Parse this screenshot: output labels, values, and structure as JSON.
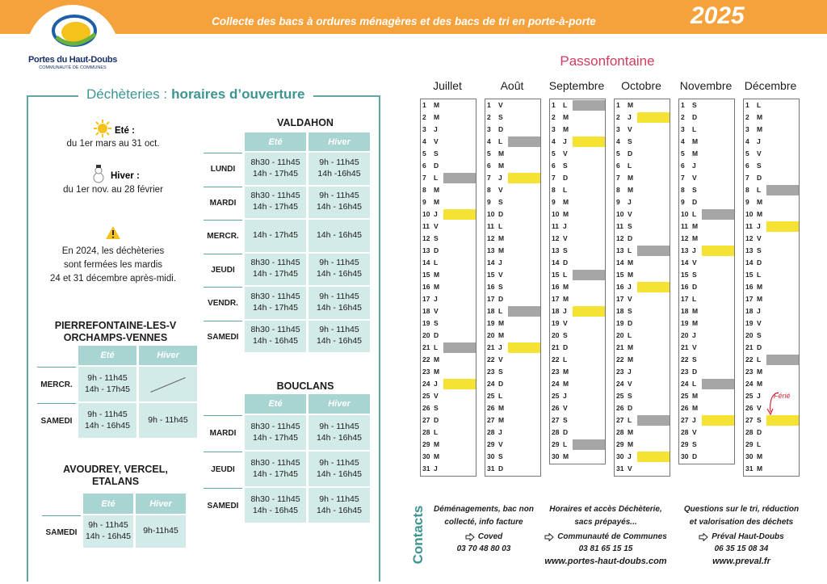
{
  "header": {
    "banner": "Collecte des bacs à ordures ménagères et des bacs de tri en porte-à-porte",
    "year": "2025",
    "logo_name": "Portes du Haut-Doubs",
    "logo_sub": "COMMUNAUTÉ DE COMMUNES"
  },
  "panel": {
    "title_a": "Déchèteries :",
    "title_b": "horaires d’ouverture",
    "summer_label": "Eté :",
    "summer_dates": "du 1er mars au 31 oct.",
    "winter_label": "Hiver :",
    "winter_dates": "du 1er nov. au 28 février",
    "notice": [
      "En 2024, les déchèteries",
      "sont fermées les mardis",
      "24 et 31 décembre après-midi."
    ],
    "tables": [
      {
        "title": [
          "VALDAHON"
        ],
        "columns": [
          "Eté",
          "Hiver"
        ],
        "rows": [
          {
            "day": "LUNDI",
            "cells": [
              [
                "8h30 - 11h45",
                "14h - 17h45"
              ],
              [
                "9h - 11h45",
                "14h -16h45"
              ]
            ]
          },
          {
            "day": "MARDI",
            "cells": [
              [
                "8h30 - 11h45",
                "14h - 17h45"
              ],
              [
                "9h - 11h45",
                "14h - 16h45"
              ]
            ]
          },
          {
            "day": "MERCR.",
            "cells": [
              [
                "14h - 17h45"
              ],
              [
                "14h - 16h45"
              ]
            ]
          },
          {
            "day": "JEUDI",
            "cells": [
              [
                "8h30 - 11h45",
                "14h - 17h45"
              ],
              [
                "9h - 11h45",
                "14h - 16h45"
              ]
            ]
          },
          {
            "day": "VENDR.",
            "cells": [
              [
                "8h30 - 11h45",
                "14h - 17h45"
              ],
              [
                "9h - 11h45",
                "14h - 16h45"
              ]
            ]
          },
          {
            "day": "SAMEDI",
            "cells": [
              [
                "8h30 - 11h45",
                "14h - 16h45"
              ],
              [
                "9h - 11h45",
                "14h - 16h45"
              ]
            ]
          }
        ]
      },
      {
        "title": [
          "PIERREFONTAINE-LES-V",
          "ORCHAMPS-VENNES"
        ],
        "columns": [
          "Eté",
          "Hiver"
        ],
        "rows": [
          {
            "day": "MERCR.",
            "cells": [
              [
                "9h - 11h45",
                "14h - 17h45"
              ],
              []
            ]
          },
          {
            "day": "SAMEDI",
            "cells": [
              [
                "9h - 11h45",
                "14h - 16h45"
              ],
              [
                "9h - 11h45"
              ]
            ]
          }
        ]
      },
      {
        "title": [
          "BOUCLANS"
        ],
        "columns": [
          "Eté",
          "Hiver"
        ],
        "rows": [
          {
            "day": "MARDI",
            "cells": [
              [
                "8h30 - 11h45",
                "14h - 17h45"
              ],
              [
                "9h - 11h45",
                "14h - 16h45"
              ]
            ]
          },
          {
            "day": "JEUDI",
            "cells": [
              [
                "8h30 - 11h45",
                "14h - 17h45"
              ],
              [
                "9h - 11h45",
                "14h - 16h45"
              ]
            ]
          },
          {
            "day": "SAMEDI",
            "cells": [
              [
                "8h30 - 11h45",
                "14h - 16h45"
              ],
              [
                "9h - 11h45",
                "14h - 16h45"
              ]
            ]
          }
        ]
      },
      {
        "title": [
          "AVOUDREY, VERCEL,",
          "ETALANS"
        ],
        "columns": [
          "Eté",
          "Hiver"
        ],
        "rows": [
          {
            "day": "SAMEDI",
            "cells": [
              [
                "9h - 11h45",
                "14h - 16h45"
              ],
              [
                "9h-11h45"
              ]
            ]
          }
        ]
      }
    ]
  },
  "calendar": {
    "title": "Passonfontaine",
    "note": "Férié",
    "months": [
      {
        "name": "Juillet",
        "gray": [
          7,
          21
        ],
        "yellow": [
          10,
          24
        ],
        "days": [
          [
            1,
            "M"
          ],
          [
            2,
            "M"
          ],
          [
            3,
            "J"
          ],
          [
            4,
            "V"
          ],
          [
            5,
            "S"
          ],
          [
            6,
            "D"
          ],
          [
            7,
            "L"
          ],
          [
            8,
            "M"
          ],
          [
            9,
            "M"
          ],
          [
            10,
            "J"
          ],
          [
            11,
            "V"
          ],
          [
            12,
            "S"
          ],
          [
            13,
            "D"
          ],
          [
            14,
            "L"
          ],
          [
            15,
            "M"
          ],
          [
            16,
            "M"
          ],
          [
            17,
            "J"
          ],
          [
            18,
            "V"
          ],
          [
            19,
            "S"
          ],
          [
            20,
            "D"
          ],
          [
            21,
            "L"
          ],
          [
            22,
            "M"
          ],
          [
            23,
            "M"
          ],
          [
            24,
            "J"
          ],
          [
            25,
            "V"
          ],
          [
            26,
            "S"
          ],
          [
            27,
            "D"
          ],
          [
            28,
            "L"
          ],
          [
            29,
            "M"
          ],
          [
            30,
            "M"
          ],
          [
            31,
            "J"
          ]
        ]
      },
      {
        "name": "Août",
        "gray": [
          4,
          18
        ],
        "yellow": [
          7,
          21
        ],
        "days": [
          [
            1,
            "V"
          ],
          [
            2,
            "S"
          ],
          [
            3,
            "D"
          ],
          [
            4,
            "L"
          ],
          [
            5,
            "M"
          ],
          [
            6,
            "M"
          ],
          [
            7,
            "J"
          ],
          [
            8,
            "V"
          ],
          [
            9,
            "S"
          ],
          [
            10,
            "D"
          ],
          [
            11,
            "L"
          ],
          [
            12,
            "M"
          ],
          [
            13,
            "M"
          ],
          [
            14,
            "J"
          ],
          [
            15,
            "V"
          ],
          [
            16,
            "S"
          ],
          [
            17,
            "D"
          ],
          [
            18,
            "L"
          ],
          [
            19,
            "M"
          ],
          [
            20,
            "M"
          ],
          [
            21,
            "J"
          ],
          [
            22,
            "V"
          ],
          [
            23,
            "S"
          ],
          [
            24,
            "D"
          ],
          [
            25,
            "L"
          ],
          [
            26,
            "M"
          ],
          [
            27,
            "M"
          ],
          [
            28,
            "J"
          ],
          [
            29,
            "V"
          ],
          [
            30,
            "S"
          ],
          [
            31,
            "D"
          ]
        ]
      },
      {
        "name": "Septembre",
        "gray": [
          1,
          15,
          29
        ],
        "yellow": [
          4,
          18
        ],
        "days": [
          [
            1,
            "L"
          ],
          [
            2,
            "M"
          ],
          [
            3,
            "M"
          ],
          [
            4,
            "J"
          ],
          [
            5,
            "V"
          ],
          [
            6,
            "S"
          ],
          [
            7,
            "D"
          ],
          [
            8,
            "L"
          ],
          [
            9,
            "M"
          ],
          [
            10,
            "M"
          ],
          [
            11,
            "J"
          ],
          [
            12,
            "V"
          ],
          [
            13,
            "S"
          ],
          [
            14,
            "D"
          ],
          [
            15,
            "L"
          ],
          [
            16,
            "M"
          ],
          [
            17,
            "M"
          ],
          [
            18,
            "J"
          ],
          [
            19,
            "V"
          ],
          [
            20,
            "S"
          ],
          [
            21,
            "D"
          ],
          [
            22,
            "L"
          ],
          [
            23,
            "M"
          ],
          [
            24,
            "M"
          ],
          [
            25,
            "J"
          ],
          [
            26,
            "V"
          ],
          [
            27,
            "S"
          ],
          [
            28,
            "D"
          ],
          [
            29,
            "L"
          ],
          [
            30,
            "M"
          ]
        ]
      },
      {
        "name": "Octobre",
        "gray": [
          13,
          27
        ],
        "yellow": [
          2,
          16,
          30
        ],
        "days": [
          [
            1,
            "M"
          ],
          [
            2,
            "J"
          ],
          [
            3,
            "V"
          ],
          [
            4,
            "S"
          ],
          [
            5,
            "D"
          ],
          [
            6,
            "L"
          ],
          [
            7,
            "M"
          ],
          [
            8,
            "M"
          ],
          [
            9,
            "J"
          ],
          [
            10,
            "V"
          ],
          [
            11,
            "S"
          ],
          [
            12,
            "D"
          ],
          [
            13,
            "L"
          ],
          [
            14,
            "M"
          ],
          [
            15,
            "M"
          ],
          [
            16,
            "J"
          ],
          [
            17,
            "V"
          ],
          [
            18,
            "S"
          ],
          [
            19,
            "D"
          ],
          [
            20,
            "L"
          ],
          [
            21,
            "M"
          ],
          [
            22,
            "M"
          ],
          [
            23,
            "J"
          ],
          [
            24,
            "V"
          ],
          [
            25,
            "S"
          ],
          [
            26,
            "D"
          ],
          [
            27,
            "L"
          ],
          [
            28,
            "M"
          ],
          [
            29,
            "M"
          ],
          [
            30,
            "J"
          ],
          [
            31,
            "V"
          ]
        ]
      },
      {
        "name": "Novembre",
        "gray": [
          10,
          24
        ],
        "yellow": [
          13,
          27
        ],
        "days": [
          [
            1,
            "S"
          ],
          [
            2,
            "D"
          ],
          [
            3,
            "L"
          ],
          [
            4,
            "M"
          ],
          [
            5,
            "M"
          ],
          [
            6,
            "J"
          ],
          [
            7,
            "V"
          ],
          [
            8,
            "S"
          ],
          [
            9,
            "D"
          ],
          [
            10,
            "L"
          ],
          [
            11,
            "M"
          ],
          [
            12,
            "M"
          ],
          [
            13,
            "J"
          ],
          [
            14,
            "V"
          ],
          [
            15,
            "S"
          ],
          [
            16,
            "D"
          ],
          [
            17,
            "L"
          ],
          [
            18,
            "M"
          ],
          [
            19,
            "M"
          ],
          [
            20,
            "J"
          ],
          [
            21,
            "V"
          ],
          [
            22,
            "S"
          ],
          [
            23,
            "D"
          ],
          [
            24,
            "L"
          ],
          [
            25,
            "M"
          ],
          [
            26,
            "M"
          ],
          [
            27,
            "J"
          ],
          [
            28,
            "V"
          ],
          [
            29,
            "S"
          ],
          [
            30,
            "D"
          ]
        ]
      },
      {
        "name": "Décembre",
        "gray": [
          8,
          22
        ],
        "yellow": [
          11,
          27
        ],
        "days": [
          [
            1,
            "L"
          ],
          [
            2,
            "M"
          ],
          [
            3,
            "M"
          ],
          [
            4,
            "J"
          ],
          [
            5,
            "V"
          ],
          [
            6,
            "S"
          ],
          [
            7,
            "D"
          ],
          [
            8,
            "L"
          ],
          [
            9,
            "M"
          ],
          [
            10,
            "M"
          ],
          [
            11,
            "J"
          ],
          [
            12,
            "V"
          ],
          [
            13,
            "S"
          ],
          [
            14,
            "D"
          ],
          [
            15,
            "L"
          ],
          [
            16,
            "M"
          ],
          [
            17,
            "M"
          ],
          [
            18,
            "J"
          ],
          [
            19,
            "V"
          ],
          [
            20,
            "S"
          ],
          [
            21,
            "D"
          ],
          [
            22,
            "L"
          ],
          [
            23,
            "M"
          ],
          [
            24,
            "M"
          ],
          [
            25,
            "J"
          ],
          [
            26,
            "V"
          ],
          [
            27,
            "S"
          ],
          [
            28,
            "D"
          ],
          [
            29,
            "L"
          ],
          [
            30,
            "M"
          ],
          [
            31,
            "M"
          ]
        ]
      }
    ]
  },
  "contacts": {
    "label": "Contacts",
    "items": [
      {
        "lines": [
          "Déménagements, bac non",
          "collecté, info facture"
        ],
        "name": "Coved",
        "phone": "03 70 48 80 03"
      },
      {
        "lines": [
          "Horaires et accès Déchèterie,",
          "sacs prépayés..."
        ],
        "name": "Communauté de Communes",
        "phone": "03 81 65 15 15",
        "web": "www.portes-haut-doubs.com"
      },
      {
        "lines": [
          "Questions sur le tri, réduction",
          "et valorisation des déchets"
        ],
        "name": "Préval Haut-Doubs",
        "phone": "06 35 15 08 34",
        "web": "www.preval.fr"
      }
    ]
  }
}
